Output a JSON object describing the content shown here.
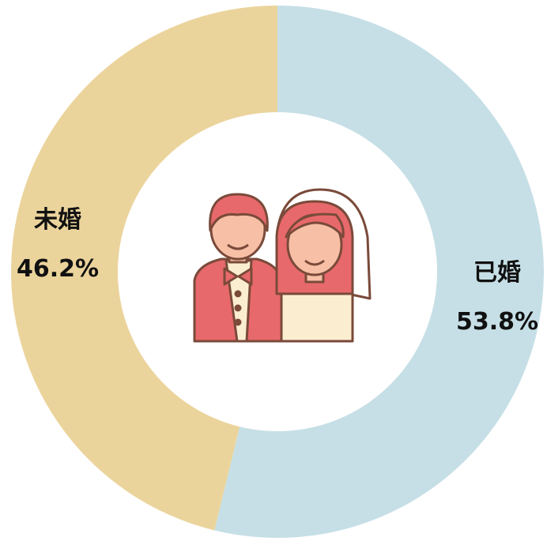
{
  "chart_data": {
    "type": "donut",
    "categories": [
      "已婚",
      "未婚"
    ],
    "values": [
      53.8,
      46.2
    ],
    "value_labels": [
      "53.8%",
      "46.2%"
    ],
    "colors": [
      "#c6dfe6",
      "#ebd49c"
    ]
  }
}
